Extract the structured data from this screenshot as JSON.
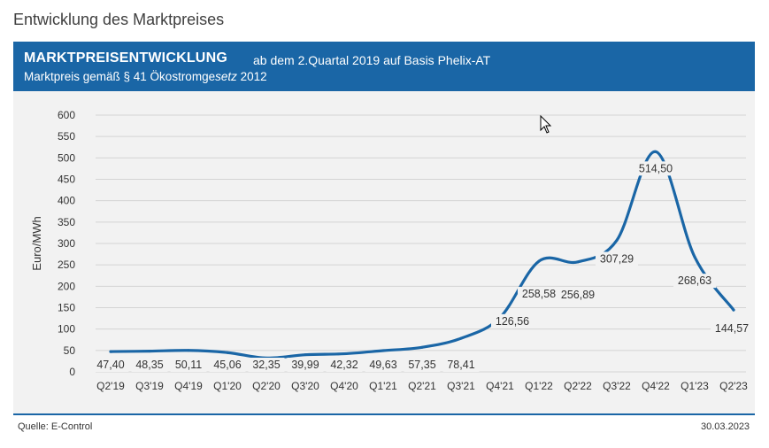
{
  "page": {
    "heading": "Entwicklung des Marktpreises"
  },
  "header": {
    "title": "MARKTPREISENTWICKLUNG",
    "subtitle": "ab dem 2.Quartal 2019 auf Basis Phelix-AT",
    "line2_prefix": "Marktpreis gemäß § 41 Ökostromge",
    "line2_italic": "setz",
    "line2_suffix": " 2012"
  },
  "footer": {
    "source": "Quelle: E-Control",
    "date": "30.03.2023"
  },
  "colors": {
    "header_band": "#1a66a6",
    "line": "#1a66a6",
    "plot_background": "#f2f2f2"
  },
  "chart_data": {
    "type": "line",
    "ylabel": "Euro/MWh",
    "ylim": [
      0,
      600
    ],
    "yticks": [
      0,
      50,
      100,
      150,
      200,
      250,
      300,
      350,
      400,
      450,
      500,
      550,
      600
    ],
    "grid": true,
    "categories": [
      "Q2'19",
      "Q3'19",
      "Q4'19",
      "Q1'20",
      "Q2'20",
      "Q3'20",
      "Q4'20",
      "Q1'21",
      "Q2'21",
      "Q3'21",
      "Q4'21",
      "Q1'22",
      "Q2'22",
      "Q3'22",
      "Q4'22",
      "Q1'23",
      "Q2'23"
    ],
    "values": [
      47.4,
      48.35,
      50.11,
      45.06,
      32.35,
      39.99,
      42.32,
      49.63,
      57.35,
      78.41,
      126.56,
      258.58,
      256.89,
      307.29,
      514.5,
      268.63,
      144.57
    ],
    "labels": [
      "47,40",
      "48,35",
      "50,11",
      "45,06",
      "32,35",
      "39,99",
      "42,32",
      "49,63",
      "57,35",
      "78,41",
      "126,56",
      "258,58",
      "256,89",
      "307,29",
      "514,50",
      "268,63",
      "144,57"
    ]
  }
}
